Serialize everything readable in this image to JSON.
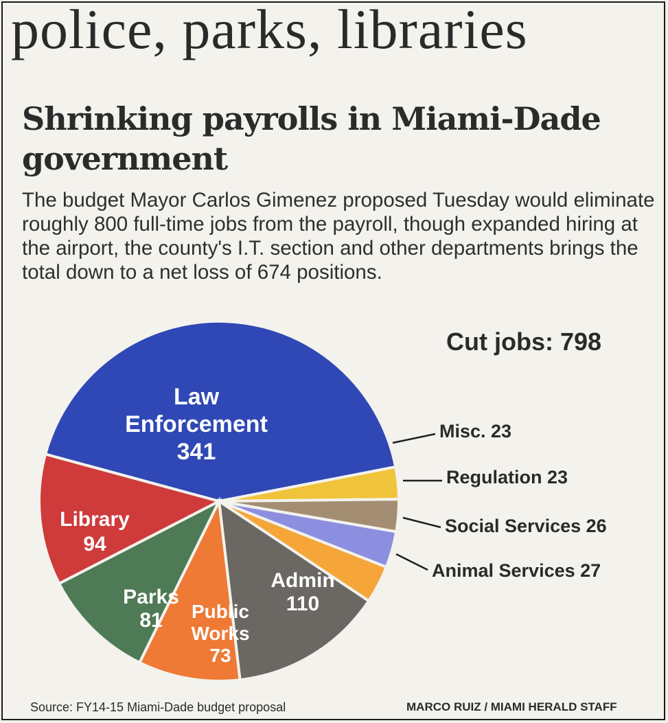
{
  "banner": "police, parks, libraries",
  "headline": "Shrinking payrolls in Miami-Dade government",
  "dek": "The budget Mayor Carlos Gimenez proposed Tuesday would eliminate roughly 800 full-time jobs from the payroll, though expanded hiring at the airport, the county's I.T. section and other departments brings the total down to a net loss of 674 positions.",
  "total_label": "Cut jobs: 798",
  "source": "Source: FY14-15 Miami-Dade budget proposal",
  "credit": "MARCO RUIZ / MIAMI HERALD STAFF",
  "chart_data": {
    "type": "pie",
    "title": "Cut jobs: 798",
    "total": 798,
    "slices": [
      {
        "name": "Law Enforcement",
        "value": 341,
        "color": "#2f48b5",
        "label_lines": [
          "Law",
          "Enforcement",
          "341"
        ],
        "label_style": "inside"
      },
      {
        "name": "Misc.",
        "value": 23,
        "color": "#f0c43a",
        "callout": "Misc. 23",
        "label_style": "callout"
      },
      {
        "name": "Regulation",
        "value": 23,
        "color": "#a48e73",
        "callout": "Regulation 23",
        "label_style": "callout"
      },
      {
        "name": "Social Services",
        "value": 26,
        "color": "#8c8fe0",
        "callout": "Social Services 26",
        "label_style": "callout"
      },
      {
        "name": "Animal Services",
        "value": 27,
        "color": "#f6a538",
        "callout": "Animal Services 27",
        "label_style": "callout"
      },
      {
        "name": "Admin",
        "value": 110,
        "color": "#6b6763",
        "label_lines": [
          "Admin",
          "110"
        ],
        "label_style": "inside"
      },
      {
        "name": "Public Works",
        "value": 73,
        "color": "#ee7a35",
        "label_lines": [
          "Public",
          "Works",
          "73"
        ],
        "label_style": "inside"
      },
      {
        "name": "Parks",
        "value": 81,
        "color": "#4e7a55",
        "label_lines": [
          "Parks",
          "81"
        ],
        "label_style": "inside"
      },
      {
        "name": "Library",
        "value": 94,
        "color": "#cf3a3a",
        "label_lines": [
          "Library",
          "94"
        ],
        "label_style": "inside"
      }
    ]
  }
}
